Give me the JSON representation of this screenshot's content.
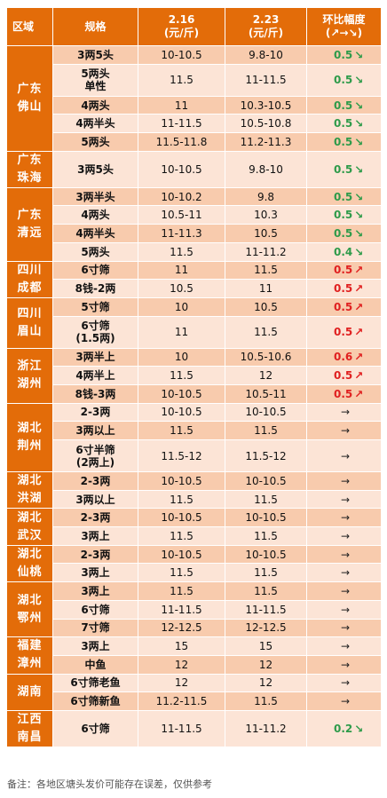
{
  "header": {
    "region": "区域",
    "spec": "规格",
    "date1": "2.16",
    "date1_unit": "(元/斤)",
    "date2": "2.23",
    "date2_unit": "(元/斤)",
    "change": "环比幅度",
    "change_symbols": "(↗→↘)"
  },
  "groups": [
    {
      "region": [
        "广东",
        "佛山"
      ],
      "rows": [
        {
          "spec": [
            "3两5头"
          ],
          "p1": "10-10.5",
          "p2": "9.8-10",
          "change": "0.5",
          "dir": "down"
        },
        {
          "spec": [
            "5两头",
            "单性"
          ],
          "p1": "11.5",
          "p2": "11-11.5",
          "change": "0.5",
          "dir": "down"
        },
        {
          "spec": [
            "4两头"
          ],
          "p1": "11",
          "p2": "10.3-10.5",
          "change": "0.5",
          "dir": "down"
        },
        {
          "spec": [
            "4两半头"
          ],
          "p1": "11-11.5",
          "p2": "10.5-10.8",
          "change": "0.5",
          "dir": "down"
        },
        {
          "spec": [
            "5两头"
          ],
          "p1": "11.5-11.8",
          "p2": "11.2-11.3",
          "change": "0.5",
          "dir": "down"
        }
      ]
    },
    {
      "region": [
        "广东",
        "珠海"
      ],
      "rows": [
        {
          "spec": [
            "3两5头"
          ],
          "p1": "10-10.5",
          "p2": "9.8-10",
          "change": "0.5",
          "dir": "down"
        }
      ]
    },
    {
      "region": [
        "广东",
        "清远"
      ],
      "rows": [
        {
          "spec": [
            "3两半头"
          ],
          "p1": "10-10.2",
          "p2": "9.8",
          "change": "0.5",
          "dir": "down"
        },
        {
          "spec": [
            "4两头"
          ],
          "p1": "10.5-11",
          "p2": "10.3",
          "change": "0.5",
          "dir": "down"
        },
        {
          "spec": [
            "4两半头"
          ],
          "p1": "11-11.3",
          "p2": "10.5",
          "change": "0.5",
          "dir": "down"
        },
        {
          "spec": [
            "5两头"
          ],
          "p1": "11.5",
          "p2": "11-11.2",
          "change": "0.4",
          "dir": "down"
        }
      ]
    },
    {
      "region": [
        "四川",
        "成都"
      ],
      "rows": [
        {
          "spec": [
            "6寸筛"
          ],
          "p1": "11",
          "p2": "11.5",
          "change": "0.5",
          "dir": "up"
        },
        {
          "spec": [
            "8钱-2两"
          ],
          "p1": "10.5",
          "p2": "11",
          "change": "0.5",
          "dir": "up"
        }
      ]
    },
    {
      "region": [
        "四川",
        "眉山"
      ],
      "rows": [
        {
          "spec": [
            "5寸筛"
          ],
          "p1": "10",
          "p2": "10.5",
          "change": "0.5",
          "dir": "up"
        },
        {
          "spec": [
            "6寸筛",
            "(1.5两)"
          ],
          "p1": "11",
          "p2": "11.5",
          "change": "0.5",
          "dir": "up"
        }
      ]
    },
    {
      "region": [
        "浙江",
        "湖州"
      ],
      "rows": [
        {
          "spec": [
            "3两半上"
          ],
          "p1": "10",
          "p2": "10.5-10.6",
          "change": "0.6",
          "dir": "up"
        },
        {
          "spec": [
            "4两半上"
          ],
          "p1": "11.5",
          "p2": "12",
          "change": "0.5",
          "dir": "up"
        },
        {
          "spec": [
            "8钱-3两"
          ],
          "p1": "10-10.5",
          "p2": "10.5-11",
          "change": "0.5",
          "dir": "up"
        }
      ]
    },
    {
      "region": [
        "湖北",
        "荆州"
      ],
      "rows": [
        {
          "spec": [
            "2-3两"
          ],
          "p1": "10-10.5",
          "p2": "10-10.5",
          "change": "",
          "dir": "flat"
        },
        {
          "spec": [
            "3两以上"
          ],
          "p1": "11.5",
          "p2": "11.5",
          "change": "",
          "dir": "flat"
        },
        {
          "spec": [
            "6寸半筛",
            "(2两上)"
          ],
          "p1": "11.5-12",
          "p2": "11.5-12",
          "change": "",
          "dir": "flat"
        }
      ]
    },
    {
      "region": [
        "湖北",
        "洪湖"
      ],
      "rows": [
        {
          "spec": [
            "2-3两"
          ],
          "p1": "10-10.5",
          "p2": "10-10.5",
          "change": "",
          "dir": "flat"
        },
        {
          "spec": [
            "3两以上"
          ],
          "p1": "11.5",
          "p2": "11.5",
          "change": "",
          "dir": "flat"
        }
      ]
    },
    {
      "region": [
        "湖北",
        "武汉"
      ],
      "rows": [
        {
          "spec": [
            "2-3两"
          ],
          "p1": "10-10.5",
          "p2": "10-10.5",
          "change": "",
          "dir": "flat"
        },
        {
          "spec": [
            "3两上"
          ],
          "p1": "11.5",
          "p2": "11.5",
          "change": "",
          "dir": "flat"
        }
      ]
    },
    {
      "region": [
        "湖北",
        "仙桃"
      ],
      "rows": [
        {
          "spec": [
            "2-3两"
          ],
          "p1": "10-10.5",
          "p2": "10-10.5",
          "change": "",
          "dir": "flat"
        },
        {
          "spec": [
            "3两上"
          ],
          "p1": "11.5",
          "p2": "11.5",
          "change": "",
          "dir": "flat"
        }
      ]
    },
    {
      "region": [
        "湖北",
        "鄂州"
      ],
      "rows": [
        {
          "spec": [
            "3两上"
          ],
          "p1": "11.5",
          "p2": "11.5",
          "change": "",
          "dir": "flat"
        },
        {
          "spec": [
            "6寸筛"
          ],
          "p1": "11-11.5",
          "p2": "11-11.5",
          "change": "",
          "dir": "flat"
        },
        {
          "spec": [
            "7寸筛"
          ],
          "p1": "12-12.5",
          "p2": "12-12.5",
          "change": "",
          "dir": "flat"
        }
      ]
    },
    {
      "region": [
        "福建",
        "漳州"
      ],
      "rows": [
        {
          "spec": [
            "3两上"
          ],
          "p1": "15",
          "p2": "15",
          "change": "",
          "dir": "flat"
        },
        {
          "spec": [
            "中鱼"
          ],
          "p1": "12",
          "p2": "12",
          "change": "",
          "dir": "flat"
        }
      ]
    },
    {
      "region": [
        "湖南"
      ],
      "rows": [
        {
          "spec": [
            "6寸筛老鱼"
          ],
          "p1": "12",
          "p2": "12",
          "change": "",
          "dir": "flat"
        },
        {
          "spec": [
            "6寸筛新鱼"
          ],
          "p1": "11.2-11.5",
          "p2": "11.5",
          "change": "",
          "dir": "flat"
        }
      ]
    },
    {
      "region": [
        "江西",
        "南昌"
      ],
      "rows": [
        {
          "spec": [
            "6寸筛"
          ],
          "p1": "11-11.5",
          "p2": "11-11.2",
          "change": "0.2",
          "dir": "down"
        }
      ]
    }
  ],
  "arrows": {
    "down": "↘",
    "up": "↗",
    "flat": "→"
  },
  "colors": {
    "header_bg": "#e36c09",
    "row_light": "#fce4d6",
    "row_dark": "#f8cbad",
    "down": "#2e9b4a",
    "up": "#e02020"
  },
  "note": "备注：各地区塘头发价可能存在误差，仅供参考"
}
